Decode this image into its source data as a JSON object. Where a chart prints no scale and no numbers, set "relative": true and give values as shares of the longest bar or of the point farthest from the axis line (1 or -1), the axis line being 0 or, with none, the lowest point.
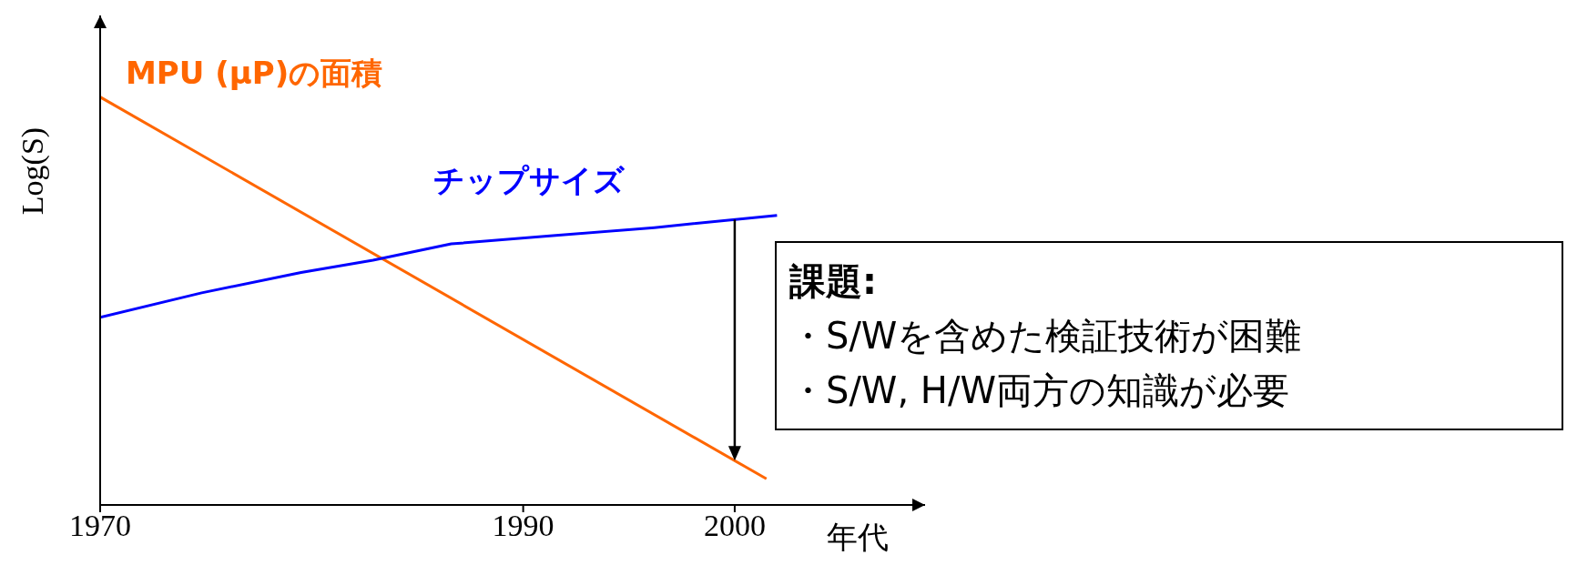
{
  "chart_data": {
    "type": "line",
    "relative": true,
    "xlabel": "年代",
    "ylabel": "Log(S)",
    "xlim": [
      1970,
      2009
    ],
    "xticks": [
      1970,
      1990,
      2000
    ],
    "legend": false,
    "grid": false,
    "marker": "none",
    "line_style": "solid",
    "annotations": [
      "課題:",
      "・S/Wを含めた検証技術が困難",
      "・S/W, H/W両方の知識が必要"
    ],
    "series": [
      {
        "name": "MPU (μP)の面積",
        "color": "#ff6600",
        "x": [
          1970,
          2001.5
        ],
        "values": [
          1,
          0.064
        ]
      },
      {
        "name": "チップサイズ",
        "color": "#0000ff",
        "x": [
          1970,
          1974.8,
          1979.5,
          1982.9,
          1986.6,
          1991.4,
          1996.2,
          2002
        ],
        "values": [
          0.46,
          0.52,
          0.57,
          0.6,
          0.64,
          0.66,
          0.68,
          0.71
        ]
      }
    ]
  }
}
